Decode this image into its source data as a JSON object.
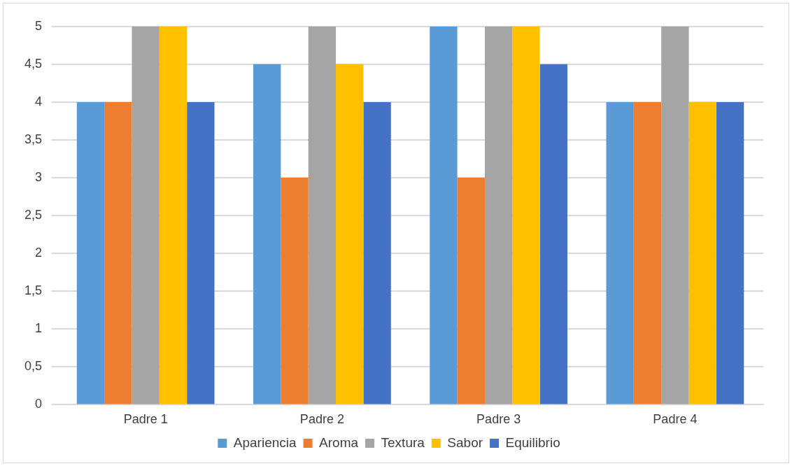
{
  "chart_data": {
    "type": "bar",
    "categories": [
      "Padre 1",
      "Padre 2",
      "Padre 3",
      "Padre 4"
    ],
    "series": [
      {
        "name": "Apariencia",
        "color": "#5b9bd5",
        "values": [
          4,
          4.5,
          5,
          4
        ]
      },
      {
        "name": "Aroma",
        "color": "#ed7d31",
        "values": [
          4,
          3,
          3,
          4
        ]
      },
      {
        "name": "Textura",
        "color": "#a5a5a5",
        "values": [
          5,
          5,
          5,
          5
        ]
      },
      {
        "name": "Sabor",
        "color": "#ffc000",
        "values": [
          5,
          4.5,
          5,
          4
        ]
      },
      {
        "name": "Equilibrio",
        "color": "#4472c4",
        "values": [
          4,
          4,
          4.5,
          4
        ]
      }
    ],
    "ylim": [
      0,
      5
    ],
    "yticks": [
      0,
      {
        "value": 0.5,
        "label": "0,5"
      },
      1,
      {
        "value": 1.5,
        "label": "1,5"
      },
      2,
      {
        "value": 2.5,
        "label": "2,5"
      },
      3,
      {
        "value": 3.5,
        "label": "3,5"
      },
      4,
      {
        "value": 4.5,
        "label": "4,5"
      },
      5
    ],
    "grid": "y",
    "legend": "bottom"
  }
}
